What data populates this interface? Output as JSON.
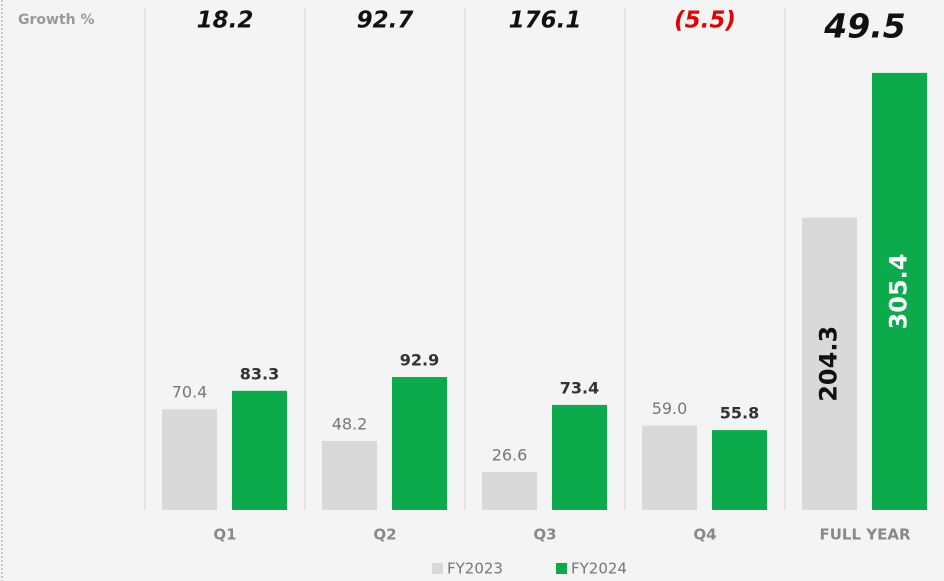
{
  "chart_data": {
    "type": "bar",
    "categories": [
      "Q1",
      "Q2",
      "Q3",
      "Q4",
      "FULL YEAR"
    ],
    "series": [
      {
        "name": "FY2023",
        "color": "#d9d9d9",
        "values": [
          70.4,
          48.2,
          26.6,
          59.0,
          204.3
        ],
        "value_labels": [
          "70.4",
          "48.2",
          "26.6",
          "59.0",
          "204.3"
        ]
      },
      {
        "name": "FY2024",
        "color": "#0bab4b",
        "values": [
          83.3,
          92.9,
          73.4,
          55.8,
          305.4
        ],
        "value_labels": [
          "83.3",
          "92.9",
          "73.4",
          "55.8",
          "305.4"
        ]
      }
    ],
    "growth": {
      "label": "Growth %",
      "values": [
        18.2,
        92.7,
        176.1,
        -5.5,
        49.5
      ],
      "value_labels": [
        "18.2",
        "92.7",
        "176.1",
        "(5.5)",
        "49.5"
      ],
      "negative_color": "#e60000"
    },
    "ylim": [
      0,
      320
    ]
  }
}
